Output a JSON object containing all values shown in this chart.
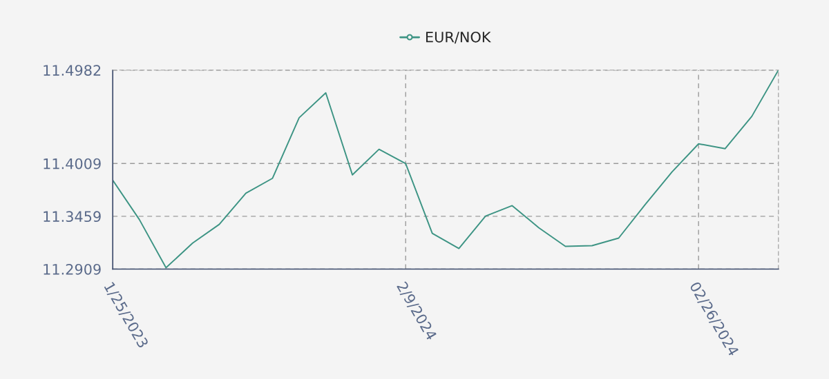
{
  "chart_data": {
    "type": "line",
    "legend": "top",
    "grid": true,
    "marker": "none",
    "line_style": "solid",
    "categories": [
      "1/25/2023",
      null,
      null,
      null,
      null,
      null,
      null,
      null,
      null,
      null,
      null,
      "2/9/2024",
      null,
      null,
      null,
      null,
      null,
      null,
      null,
      null,
      null,
      null,
      "02/26/2024",
      null,
      null,
      null
    ],
    "ylim": [
      11.2909,
      11.4982
    ],
    "yticks": [
      11.2909,
      11.3459,
      11.4009,
      11.4982
    ],
    "series": [
      {
        "name": "EUR/NOK",
        "color": "#3d9484",
        "values": [
          11.3834,
          11.3425,
          11.2923,
          11.318,
          11.3375,
          11.37,
          11.3855,
          11.4486,
          11.4745,
          11.3891,
          11.4157,
          11.4009,
          11.3282,
          11.3124,
          11.3461,
          11.357,
          11.334,
          11.3146,
          11.3153,
          11.3232,
          11.3583,
          11.392,
          11.4214,
          11.4164,
          11.45,
          11.4982
        ]
      }
    ]
  }
}
